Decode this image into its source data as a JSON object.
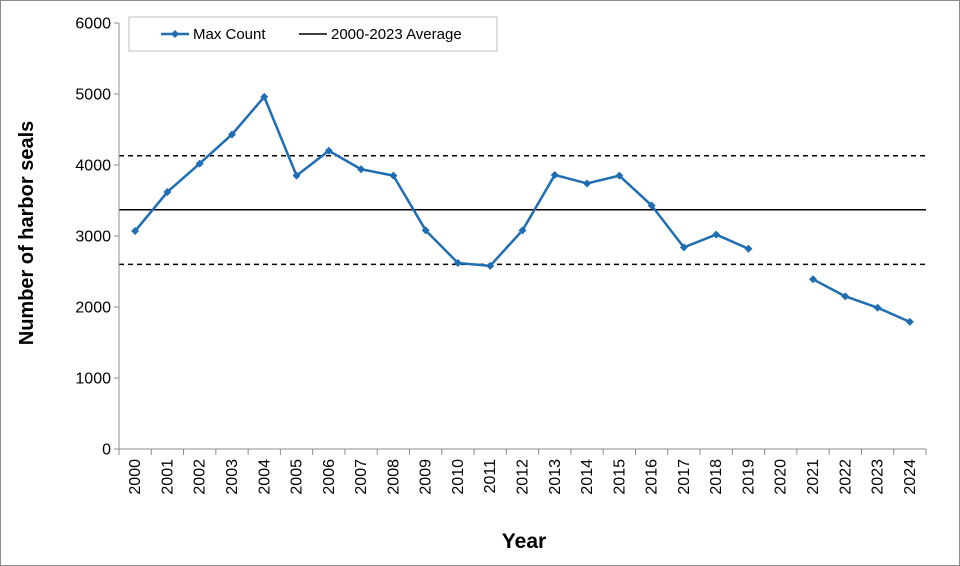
{
  "chart_data": {
    "type": "line",
    "xlabel": "Year",
    "ylabel": "Number of harbor seals",
    "ylim": [
      0,
      6000
    ],
    "yticks": [
      0,
      1000,
      2000,
      3000,
      4000,
      5000,
      6000
    ],
    "categories": [
      "2000",
      "2001",
      "2002",
      "2003",
      "2004",
      "2005",
      "2006",
      "2007",
      "2008",
      "2009",
      "2010",
      "2011",
      "2012",
      "2013",
      "2014",
      "2015",
      "2016",
      "2017",
      "2018",
      "2019",
      "2020",
      "2021",
      "2022",
      "2023",
      "2024"
    ],
    "series": [
      {
        "name": "Max Count",
        "color": "#1f6db3",
        "marker": "diamond",
        "values": [
          3070,
          3620,
          4020,
          4430,
          4960,
          3850,
          4200,
          3940,
          3850,
          3080,
          2620,
          2580,
          3080,
          3860,
          3740,
          3850,
          3430,
          2840,
          3020,
          2820,
          null,
          2390,
          2150,
          1990,
          1790
        ]
      }
    ],
    "reference_lines": [
      {
        "name": "2000-2023 Average",
        "value": 3370,
        "style": "solid",
        "color": "#000000",
        "in_legend": true
      },
      {
        "value": 4130,
        "style": "dashed",
        "color": "#000000",
        "in_legend": false
      },
      {
        "value": 2600,
        "style": "dashed",
        "color": "#000000",
        "in_legend": false
      }
    ],
    "legend": {
      "position": "top-left",
      "entries": [
        "Max Count",
        "2000-2023 Average"
      ]
    },
    "grid": false
  }
}
